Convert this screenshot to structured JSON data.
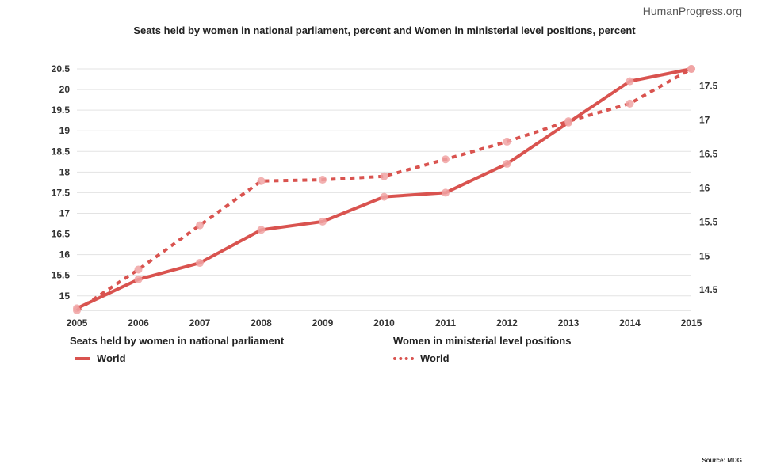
{
  "brand": "HumanProgress.org",
  "title": "Seats held by women in national parliament, percent and Women in ministerial level positions, percent",
  "source": "Source: MDG",
  "colors": {
    "series": "#d9534f",
    "marker": "#f0a3a3",
    "grid": "#e3e3e3"
  },
  "chart_data": {
    "type": "line",
    "x": [
      "2005",
      "2006",
      "2007",
      "2008",
      "2009",
      "2010",
      "2011",
      "2012",
      "2013",
      "2014",
      "2015"
    ],
    "y_left": {
      "ticks": [
        "15",
        "15.5",
        "16",
        "16.5",
        "17",
        "17.5",
        "18",
        "18.5",
        "19",
        "19.5",
        "20",
        "20.5"
      ],
      "range": [
        14.65,
        20.5
      ]
    },
    "y_right": {
      "ticks": [
        "14.5",
        "15",
        "15.5",
        "16",
        "16.5",
        "17",
        "17.5"
      ],
      "range": [
        14.2,
        17.75
      ]
    },
    "series": [
      {
        "name": "World",
        "group": "Seats held by women in national parliament",
        "axis": "left",
        "style": "solid",
        "values": [
          14.7,
          15.4,
          15.8,
          16.6,
          16.8,
          17.4,
          17.5,
          18.2,
          19.2,
          20.2,
          20.5
        ]
      },
      {
        "name": "World",
        "group": "Women in ministerial level positions",
        "axis": "right",
        "style": "dotted",
        "values": [
          14.2,
          14.8,
          15.45,
          16.1,
          16.12,
          16.17,
          16.42,
          16.68,
          16.98,
          17.24,
          17.75
        ]
      }
    ]
  },
  "legend": {
    "left": {
      "heading": "Seats held by women in national parliament",
      "label": "World"
    },
    "right": {
      "heading": "Women in ministerial level positions",
      "label": "World"
    }
  }
}
